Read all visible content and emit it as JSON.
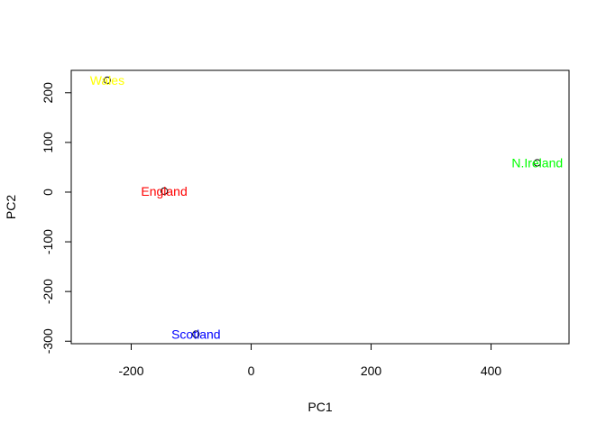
{
  "chart_data": {
    "type": "scatter",
    "title": "",
    "xlabel": "PC1",
    "ylabel": "PC2",
    "xlim": [
      -300,
      530
    ],
    "ylim": [
      -305,
      245
    ],
    "xticks": [
      -200,
      0,
      200,
      400
    ],
    "yticks": [
      -300,
      -200,
      -100,
      0,
      100,
      200
    ],
    "xtick_labels": [
      "-200",
      "0",
      "200",
      "400"
    ],
    "ytick_labels": [
      "-300",
      "-200",
      "-100",
      "0",
      "100",
      "200"
    ],
    "grid": false,
    "points": [
      {
        "label": "England",
        "x": -145,
        "y": 2,
        "color": "#ff0000"
      },
      {
        "label": "Wales",
        "x": -240,
        "y": 225,
        "color": "#ffff00"
      },
      {
        "label": "Scotland",
        "x": -92,
        "y": -286,
        "color": "#0000ff"
      },
      {
        "label": "N.Ireland",
        "x": 477,
        "y": 59,
        "color": "#00ff00"
      }
    ],
    "marker": "open-circle"
  }
}
